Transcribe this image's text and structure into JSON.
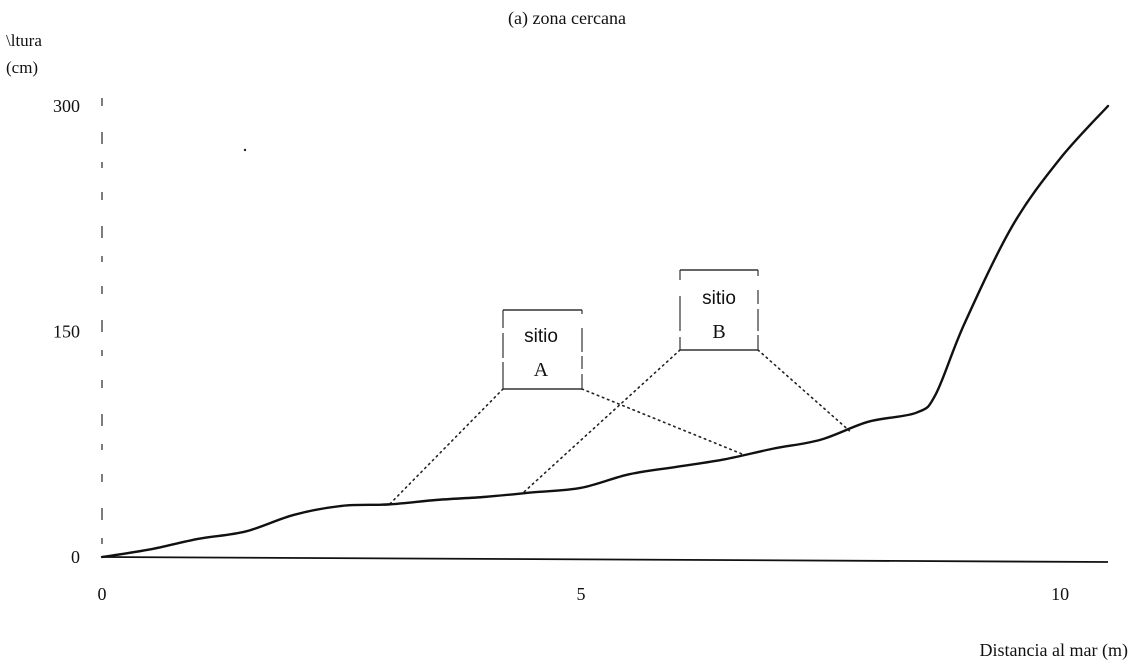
{
  "chart_data": {
    "type": "line",
    "title": "(a) zona cercana",
    "ylabel": [
      "\\ltura",
      "(cm)"
    ],
    "xlabel": "Distancia al mar (m)",
    "xlim": [
      0,
      10.5
    ],
    "ylim": [
      0,
      300
    ],
    "xticks": [
      {
        "value": 0,
        "label": "0"
      },
      {
        "value": 5,
        "label": "5"
      },
      {
        "value": 10,
        "label": "10"
      }
    ],
    "yticks": [
      {
        "value": 0,
        "label": "0"
      },
      {
        "value": 150,
        "label": "150"
      },
      {
        "value": 300,
        "label": "300"
      }
    ],
    "grid": false,
    "series": [
      {
        "x": [
          0,
          0.5,
          1.0,
          1.5,
          2.0,
          2.5,
          3.0,
          3.5,
          4.0,
          4.5,
          5.0,
          5.5,
          6.0,
          6.5,
          7.0,
          7.5,
          8.0,
          8.5,
          8.7,
          9.0,
          9.5,
          10.0,
          10.5
        ],
        "y": [
          0,
          5,
          12,
          17,
          28,
          34,
          35,
          38,
          40,
          43,
          46,
          55,
          60,
          65,
          72,
          78,
          90,
          96,
          108,
          155,
          220,
          265,
          300
        ],
        "color": "#111111"
      }
    ],
    "annotations": [
      {
        "lines": [
          "sitio",
          "A"
        ],
        "points_to": [
          [
            3.0,
            35
          ],
          [
            6.7,
            68
          ]
        ]
      },
      {
        "lines": [
          "sitio",
          "B"
        ],
        "points_to": [
          [
            4.4,
            43
          ],
          [
            7.8,
            84
          ]
        ]
      }
    ]
  }
}
